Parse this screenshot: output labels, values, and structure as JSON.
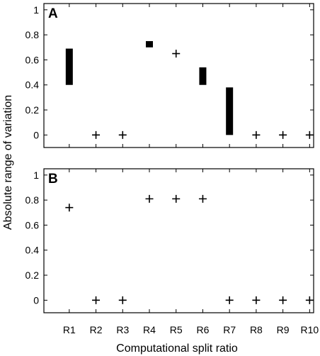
{
  "chart_data": {
    "type": "scatter",
    "xlabel": "Computational split ratio",
    "ylabel": "Absolute range of variation",
    "categories": [
      "R1",
      "R2",
      "R3",
      "R4",
      "R5",
      "R6",
      "R7",
      "R8",
      "R9",
      "R10"
    ],
    "ylim": [
      -0.1,
      1.05
    ],
    "yticks": [
      "0",
      "0.2",
      "0.4",
      "0.6",
      "0.8",
      "1"
    ],
    "grid": false,
    "panels": [
      {
        "label": "A",
        "ranges": [
          {
            "category": "R1",
            "low": 0.4,
            "high": 0.69
          },
          {
            "category": "R4",
            "low": 0.7,
            "high": 0.75
          },
          {
            "category": "R6",
            "low": 0.4,
            "high": 0.54
          },
          {
            "category": "R7",
            "low": 0.0,
            "high": 0.38
          }
        ],
        "points": [
          {
            "category": "R2",
            "value": 0
          },
          {
            "category": "R3",
            "value": 0
          },
          {
            "category": "R5",
            "value": 0.65
          },
          {
            "category": "R8",
            "value": 0
          },
          {
            "category": "R9",
            "value": 0
          },
          {
            "category": "R10",
            "value": 0
          }
        ]
      },
      {
        "label": "B",
        "ranges": [],
        "points": [
          {
            "category": "R1",
            "value": 0.74
          },
          {
            "category": "R2",
            "value": 0
          },
          {
            "category": "R3",
            "value": 0
          },
          {
            "category": "R4",
            "value": 0.81
          },
          {
            "category": "R5",
            "value": 0.81
          },
          {
            "category": "R6",
            "value": 0.81
          },
          {
            "category": "R7",
            "value": 0
          },
          {
            "category": "R8",
            "value": 0
          },
          {
            "category": "R9",
            "value": 0
          },
          {
            "category": "R10",
            "value": 0
          }
        ]
      }
    ]
  }
}
